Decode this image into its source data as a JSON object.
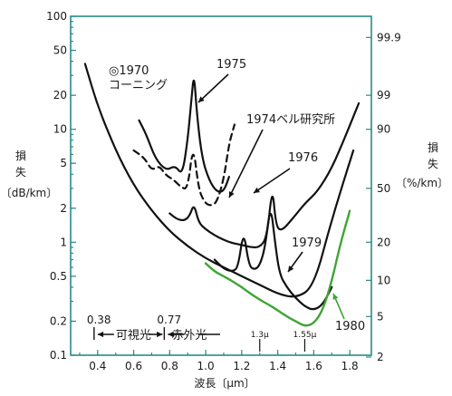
{
  "chart_data": {
    "type": "line",
    "xlabel": "波長〔μm〕",
    "ylabel_left": [
      "損",
      "失",
      "〔dB/km〕"
    ],
    "ylabel_right": [
      "損",
      "失",
      "〔%/km〕"
    ],
    "xlim": [
      0.25,
      1.92
    ],
    "ylim": [
      0.1,
      100
    ],
    "y_scale": "log",
    "x_ticks": [
      "0.4",
      "0.6",
      "0.8",
      "1.0",
      "1.2",
      "1.4",
      "1.6",
      "1.8"
    ],
    "y_ticks_left": [
      "100",
      "50",
      "20",
      "10",
      "5",
      "2",
      "1",
      "0.5",
      "0.2",
      "0.1"
    ],
    "y_ticks_right": [
      "99.9",
      "99",
      "90",
      "50",
      "20",
      "10",
      "5",
      "2"
    ],
    "series": [
      {
        "name": "◎1970\nコーニング",
        "color": "#111111",
        "x": [
          0.33,
          0.4,
          0.5,
          0.6,
          0.7,
          0.8,
          0.9,
          1.0,
          1.1,
          1.2,
          1.3,
          1.4,
          1.5,
          1.6,
          1.7,
          1.82
        ],
        "y": [
          38,
          16,
          6.5,
          3.2,
          1.9,
          1.25,
          0.92,
          0.72,
          0.6,
          0.5,
          0.42,
          0.35,
          0.32,
          0.4,
          1.6,
          6.5
        ]
      },
      {
        "name": "1975",
        "color": "#111111",
        "x": [
          0.63,
          0.67,
          0.72,
          0.78,
          0.83,
          0.87,
          0.9,
          0.92,
          0.935,
          0.95,
          0.98,
          1.02,
          1.06,
          1.1,
          1.13
        ],
        "y": [
          12,
          9,
          5.5,
          4.3,
          4.8,
          3.9,
          8,
          18,
          32,
          14,
          5.5,
          3.5,
          2.8,
          2.8,
          3.8
        ]
      },
      {
        "name": "1974ベル研究所",
        "color": "#111111",
        "dashed": true,
        "x": [
          0.6,
          0.66,
          0.7,
          0.74,
          0.78,
          0.82,
          0.86,
          0.9,
          0.93,
          0.96,
          0.99,
          1.02,
          1.06,
          1.1,
          1.13,
          1.16
        ],
        "y": [
          6.5,
          5.6,
          4.3,
          4.8,
          3.9,
          3.6,
          3.1,
          2.9,
          7.5,
          3.0,
          2.3,
          2.1,
          2.2,
          3.6,
          7.5,
          11
        ]
      },
      {
        "name": "1976",
        "color": "#111111",
        "x": [
          0.8,
          0.84,
          0.88,
          0.91,
          0.935,
          0.96,
          1.0,
          1.05,
          1.1,
          1.15,
          1.2,
          1.25,
          1.3,
          1.34,
          1.37,
          1.39,
          1.42,
          1.48,
          1.55,
          1.62,
          1.7,
          1.78,
          1.85
        ],
        "y": [
          1.8,
          1.6,
          1.55,
          1.7,
          2.2,
          1.5,
          1.3,
          1.15,
          1.05,
          0.98,
          0.95,
          0.9,
          0.9,
          1.1,
          3.2,
          1.4,
          1.25,
          1.6,
          2.2,
          2.8,
          4.5,
          9,
          17
        ]
      },
      {
        "name": "1979",
        "color": "#111111",
        "x": [
          1.05,
          1.1,
          1.15,
          1.18,
          1.21,
          1.24,
          1.27,
          1.3,
          1.33,
          1.36,
          1.385,
          1.41,
          1.45,
          1.5,
          1.55,
          1.6,
          1.65,
          1.7
        ],
        "y": [
          0.7,
          0.58,
          0.55,
          0.6,
          1.3,
          0.62,
          0.57,
          0.62,
          0.9,
          2.2,
          1.0,
          0.52,
          0.4,
          0.32,
          0.27,
          0.25,
          0.28,
          0.4
        ]
      },
      {
        "name": "1980",
        "color": "#3fa535",
        "x": [
          1.0,
          1.05,
          1.1,
          1.15,
          1.2,
          1.25,
          1.3,
          1.35,
          1.4,
          1.45,
          1.5,
          1.55,
          1.6,
          1.65,
          1.7,
          1.75,
          1.8
        ],
        "y": [
          0.65,
          0.55,
          0.5,
          0.45,
          0.4,
          0.35,
          0.31,
          0.28,
          0.25,
          0.22,
          0.2,
          0.18,
          0.19,
          0.25,
          0.45,
          1.0,
          1.9
        ]
      }
    ],
    "annotations": {
      "bracket_ticks": [
        "0.38",
        "0.77"
      ],
      "visible_label": "可視光",
      "infrared_label": "赤外光",
      "wl_1_3": "1.3μ",
      "wl_1_55": "1.55μ"
    }
  }
}
